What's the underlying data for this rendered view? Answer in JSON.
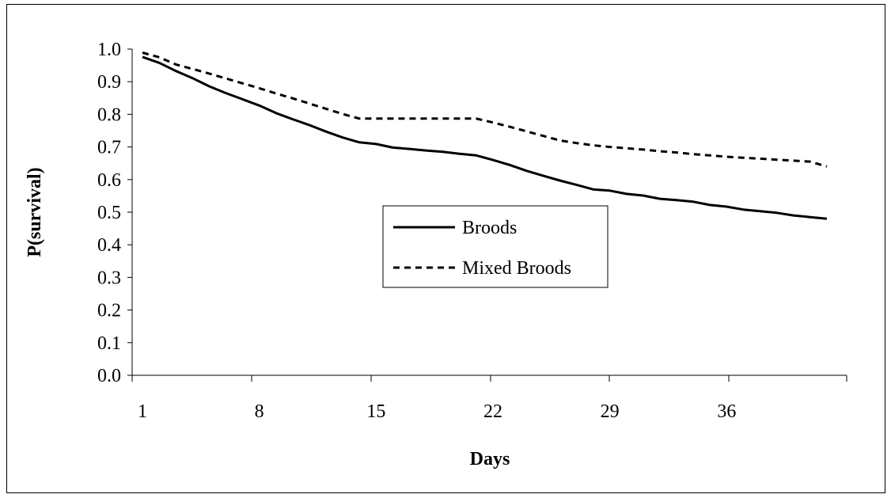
{
  "chart_data": {
    "type": "line",
    "xlabel": "Days",
    "ylabel": "P(survival)",
    "xlim": [
      1,
      43
    ],
    "ylim": [
      0,
      1.0
    ],
    "x_ticks": [
      1,
      8,
      15,
      22,
      29,
      36
    ],
    "x_tick_labels": [
      "1",
      "8",
      "15",
      "22",
      "29",
      "36"
    ],
    "y_ticks": [
      0.0,
      0.1,
      0.2,
      0.3,
      0.4,
      0.5,
      0.6,
      0.7,
      0.8,
      0.9,
      1.0
    ],
    "y_tick_labels": [
      "0.0",
      "0.1",
      "0.2",
      "0.3",
      "0.4",
      "0.5",
      "0.6",
      "0.7",
      "0.8",
      "0.9",
      "1.0"
    ],
    "grid": false,
    "legend": {
      "position": "center-right",
      "entries": [
        "Broods",
        "Mixed Broods"
      ]
    },
    "series": [
      {
        "name": "Broods",
        "style": "solid",
        "color": "#000000",
        "x": [
          1,
          2,
          3,
          4,
          5,
          6,
          7,
          8,
          9,
          10,
          11,
          12,
          13,
          14,
          15,
          16,
          17,
          18,
          19,
          20,
          21,
          22,
          23,
          24,
          25,
          26,
          27,
          28,
          29,
          30,
          31,
          32,
          33,
          34,
          35,
          36,
          37,
          38,
          39,
          40,
          41,
          42
        ],
        "y": [
          0.976,
          0.958,
          0.933,
          0.911,
          0.886,
          0.865,
          0.846,
          0.827,
          0.804,
          0.785,
          0.767,
          0.747,
          0.729,
          0.714,
          0.709,
          0.698,
          0.694,
          0.689,
          0.685,
          0.679,
          0.674,
          0.66,
          0.645,
          0.627,
          0.612,
          0.597,
          0.584,
          0.57,
          0.566,
          0.556,
          0.551,
          0.541,
          0.537,
          0.532,
          0.522,
          0.517,
          0.508,
          0.503,
          0.498,
          0.49,
          0.485,
          0.48
        ]
      },
      {
        "name": "Mixed Broods",
        "style": "dashed",
        "color": "#000000",
        "x": [
          1,
          2,
          3,
          4,
          5,
          6,
          7,
          8,
          9,
          10,
          11,
          12,
          13,
          14,
          15,
          16,
          17,
          18,
          19,
          20,
          21,
          22,
          23,
          24,
          25,
          26,
          27,
          28,
          29,
          30,
          31,
          32,
          33,
          34,
          35,
          36,
          37,
          38,
          39,
          40,
          41,
          42
        ],
        "y": [
          0.989,
          0.975,
          0.953,
          0.939,
          0.925,
          0.91,
          0.895,
          0.88,
          0.864,
          0.849,
          0.833,
          0.817,
          0.801,
          0.787,
          0.787,
          0.787,
          0.787,
          0.787,
          0.787,
          0.787,
          0.787,
          0.775,
          0.762,
          0.748,
          0.734,
          0.72,
          0.712,
          0.705,
          0.7,
          0.696,
          0.692,
          0.687,
          0.683,
          0.678,
          0.674,
          0.67,
          0.667,
          0.664,
          0.661,
          0.658,
          0.655,
          0.64
        ]
      }
    ]
  }
}
